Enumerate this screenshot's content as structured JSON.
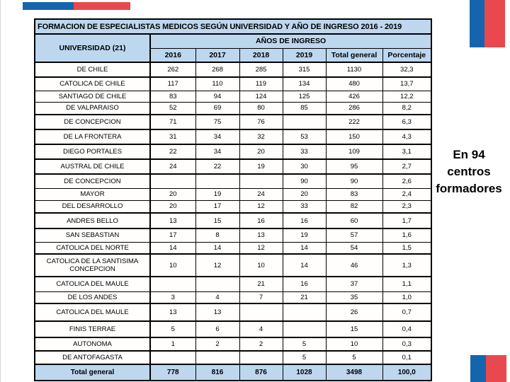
{
  "slide": {
    "title": "FORMACION DE ESPECIALISTAS MEDICOS SEGÚN UNIVERSIDAD Y AÑO DE INGRESO 2016 - 2019",
    "annotation": "En 94 centros formadores",
    "colors": {
      "accent_blue": "#1565ae",
      "accent_red": "#e9484f",
      "header_fill": "#bdd7ee",
      "border": "#000000"
    }
  },
  "table": {
    "university_header": "UNIVERSIDAD (21)",
    "years_group_header": "AÑOS DE INGRESO",
    "year_headers": [
      "2016",
      "2017",
      "2018",
      "2019",
      "Total general",
      "Porcentaje"
    ],
    "rows": [
      {
        "university": "DE CHILE",
        "values": [
          "262",
          "268",
          "285",
          "315",
          "1130",
          "32,3"
        ]
      },
      {
        "university": "CATOLICA DE CHILE",
        "values": [
          "117",
          "110",
          "119",
          "134",
          "480",
          "13,7"
        ]
      },
      {
        "university": "SANTIAGO DE CHILE",
        "values": [
          "83",
          "94",
          "124",
          "125",
          "426",
          "12,2"
        ]
      },
      {
        "university": "DE VALPARAISO",
        "values": [
          "52",
          "69",
          "80",
          "85",
          "286",
          "8,2"
        ]
      },
      {
        "university": "DE CONCEPCION",
        "values": [
          "71",
          "75",
          "76",
          "",
          "222",
          "6,3"
        ]
      },
      {
        "university": "DE LA FRONTERA",
        "values": [
          "31",
          "34",
          "32",
          "53",
          "150",
          "4,3"
        ]
      },
      {
        "university": "DIEGO PORTALES",
        "values": [
          "22",
          "34",
          "20",
          "33",
          "109",
          "3,1"
        ]
      },
      {
        "university": "AUSTRAL DE CHILE",
        "values": [
          "24",
          "22",
          "19",
          "30",
          "95",
          "2,7"
        ]
      },
      {
        "university": "DE CONCEPCION",
        "values": [
          "",
          "",
          "",
          "90",
          "90",
          "2,6"
        ]
      },
      {
        "university": "MAYOR",
        "values": [
          "20",
          "19",
          "24",
          "20",
          "83",
          "2,4"
        ]
      },
      {
        "university": "DEL DESARROLLO",
        "values": [
          "20",
          "17",
          "12",
          "33",
          "82",
          "2,3"
        ]
      },
      {
        "university": "ANDRES BELLO",
        "values": [
          "13",
          "15",
          "16",
          "16",
          "60",
          "1,7"
        ]
      },
      {
        "university": "SAN SEBASTIAN",
        "values": [
          "17",
          "8",
          "13",
          "19",
          "57",
          "1,6"
        ]
      },
      {
        "university": "CATOLICA DEL NORTE",
        "values": [
          "14",
          "14",
          "12",
          "14",
          "54",
          "1,5"
        ]
      },
      {
        "university": "CATOLICA DE LA SANTISIMA CONCEPCION",
        "values": [
          "10",
          "12",
          "10",
          "14",
          "46",
          "1,3"
        ]
      },
      {
        "university": "CATOLICA DEL MAULE",
        "values": [
          "",
          "",
          "21",
          "16",
          "37",
          "1,1"
        ]
      },
      {
        "university": "DE LOS ANDES",
        "values": [
          "3",
          "4",
          "7",
          "21",
          "35",
          "1,0"
        ]
      },
      {
        "university": "CATOLICA DEL MAULE",
        "values": [
          "13",
          "13",
          "",
          "",
          "26",
          "0,7"
        ]
      },
      {
        "university": "FINIS TERRAE",
        "values": [
          "5",
          "6",
          "4",
          "",
          "15",
          "0,4"
        ]
      },
      {
        "university": "AUTONOMA",
        "values": [
          "1",
          "2",
          "2",
          "5",
          "10",
          "0,3"
        ]
      },
      {
        "university": "DE ANTOFAGASTA",
        "values": [
          "",
          "",
          "",
          "5",
          "5",
          "0,1"
        ]
      }
    ],
    "total_row": {
      "label": "Total general",
      "values": [
        "778",
        "816",
        "876",
        "1028",
        "3498",
        "100,0"
      ]
    }
  }
}
